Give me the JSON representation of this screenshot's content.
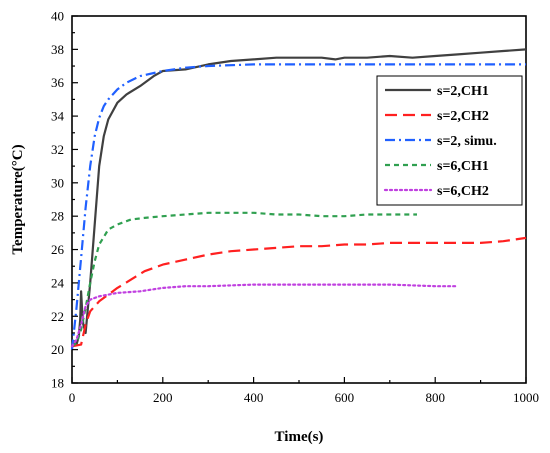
{
  "chart_data": {
    "type": "line",
    "title": "",
    "xlabel": "Time(s)",
    "ylabel": "Temperature(°C)",
    "xlim": [
      0,
      1000
    ],
    "ylim": [
      18,
      40
    ],
    "xticks": [
      0,
      200,
      400,
      600,
      800,
      1000
    ],
    "yticks": [
      18,
      20,
      22,
      24,
      26,
      28,
      30,
      32,
      34,
      36,
      38,
      40
    ],
    "grid": false,
    "legend_position": "top-right",
    "series": [
      {
        "name": "s=2,CH1",
        "color": "#404040",
        "dash": "solid",
        "x": [
          0,
          5,
          10,
          15,
          18,
          20,
          22,
          25,
          30,
          40,
          50,
          60,
          70,
          80,
          100,
          120,
          150,
          180,
          200,
          250,
          300,
          350,
          400,
          450,
          500,
          550,
          580,
          600,
          650,
          700,
          750,
          800,
          850,
          900,
          950,
          1000
        ],
        "y": [
          20.2,
          20.5,
          20.3,
          20.8,
          21.8,
          23.5,
          22.5,
          21.5,
          21.0,
          24.0,
          27.5,
          31.0,
          32.8,
          33.8,
          34.8,
          35.3,
          35.8,
          36.4,
          36.7,
          36.8,
          37.1,
          37.3,
          37.4,
          37.5,
          37.5,
          37.5,
          37.4,
          37.5,
          37.5,
          37.6,
          37.5,
          37.6,
          37.7,
          37.8,
          37.9,
          38.0
        ]
      },
      {
        "name": "s=2,CH2",
        "color": "#ff2020",
        "dash": "long-dash",
        "x": [
          0,
          20,
          30,
          40,
          60,
          80,
          100,
          130,
          160,
          200,
          250,
          300,
          350,
          400,
          450,
          500,
          550,
          600,
          650,
          700,
          750,
          800,
          850,
          900,
          950,
          1000
        ],
        "y": [
          20.2,
          20.3,
          21.5,
          22.3,
          22.9,
          23.3,
          23.7,
          24.2,
          24.7,
          25.1,
          25.4,
          25.7,
          25.9,
          26.0,
          26.1,
          26.2,
          26.2,
          26.3,
          26.3,
          26.4,
          26.4,
          26.4,
          26.4,
          26.4,
          26.5,
          26.7
        ]
      },
      {
        "name": "s=2, simu.",
        "color": "#2060ff",
        "dash": "dash-dot",
        "x": [
          0,
          10,
          20,
          30,
          40,
          50,
          60,
          70,
          80,
          100,
          120,
          150,
          200,
          250,
          300,
          400,
          500,
          600,
          700,
          800,
          900,
          1000
        ],
        "y": [
          20.0,
          22.5,
          25.5,
          28.5,
          31.0,
          32.8,
          33.9,
          34.6,
          35.0,
          35.6,
          36.0,
          36.4,
          36.7,
          36.9,
          37.0,
          37.1,
          37.1,
          37.1,
          37.1,
          37.1,
          37.1,
          37.1
        ]
      },
      {
        "name": "s=6,CH1",
        "color": "#30a050",
        "dash": "short-dash",
        "x": [
          0,
          10,
          20,
          30,
          40,
          50,
          60,
          80,
          100,
          130,
          160,
          200,
          250,
          300,
          350,
          400,
          450,
          500,
          550,
          600,
          650,
          700,
          760
        ],
        "y": [
          20.2,
          20.4,
          21.2,
          22.5,
          24.0,
          25.3,
          26.3,
          27.2,
          27.5,
          27.8,
          27.9,
          28.0,
          28.1,
          28.2,
          28.2,
          28.2,
          28.1,
          28.1,
          28.0,
          28.0,
          28.1,
          28.1,
          28.1
        ]
      },
      {
        "name": "s=6,CH2",
        "color": "#c040e0",
        "dash": "dotted",
        "x": [
          0,
          10,
          20,
          30,
          40,
          60,
          80,
          100,
          150,
          200,
          250,
          300,
          400,
          500,
          600,
          700,
          800,
          850
        ],
        "y": [
          20.2,
          20.6,
          21.5,
          22.6,
          23.0,
          23.2,
          23.3,
          23.4,
          23.5,
          23.7,
          23.8,
          23.8,
          23.9,
          23.9,
          23.9,
          23.9,
          23.8,
          23.8
        ]
      }
    ]
  }
}
